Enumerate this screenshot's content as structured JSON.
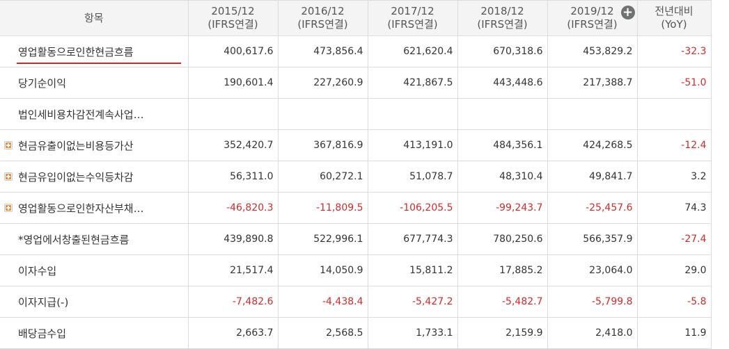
{
  "table": {
    "header": {
      "item": "항목",
      "periods": [
        {
          "year": "2015/12",
          "basis": "(IFRS연결)"
        },
        {
          "year": "2016/12",
          "basis": "(IFRS연결)"
        },
        {
          "year": "2017/12",
          "basis": "(IFRS연결)"
        },
        {
          "year": "2018/12",
          "basis": "(IFRS연결)"
        },
        {
          "year": "2019/12",
          "basis": "(IFRS연결)"
        }
      ],
      "yoy": {
        "line1": "전년대비",
        "line2": "(YoY)"
      },
      "add_column_icon": "plus-circle-icon"
    },
    "rows": [
      {
        "label": "영업활동으로인한현금흐름",
        "expandable": false,
        "highlighted": true,
        "values": [
          "400,617.6",
          "473,856.4",
          "621,620.4",
          "670,318.6",
          "453,829.2"
        ],
        "yoy": "-32.3"
      },
      {
        "label": "당기순이익",
        "expandable": false,
        "values": [
          "190,601.4",
          "227,260.9",
          "421,867.5",
          "443,448.6",
          "217,388.7"
        ],
        "yoy": "-51.0"
      },
      {
        "label": "법인세비용차감전계속사업…",
        "expandable": false,
        "values": [
          "",
          "",
          "",
          "",
          ""
        ],
        "yoy": ""
      },
      {
        "label": "현금유출이없는비용등가산",
        "expandable": true,
        "values": [
          "352,420.7",
          "367,816.9",
          "413,191.0",
          "484,356.1",
          "424,268.5"
        ],
        "yoy": "-12.4"
      },
      {
        "label": "현금유입이없는수익등차감",
        "expandable": true,
        "values": [
          "56,311.0",
          "60,272.1",
          "51,078.7",
          "48,310.4",
          "49,841.7"
        ],
        "yoy": "3.2"
      },
      {
        "label": "영업활동으로인한자산부채…",
        "expandable": true,
        "values": [
          "-46,820.3",
          "-11,809.5",
          "-106,205.5",
          "-99,243.7",
          "-25,457.6"
        ],
        "yoy": "74.3"
      },
      {
        "label": "*영업에서창출된현금흐름",
        "expandable": false,
        "values": [
          "439,890.8",
          "522,996.1",
          "677,774.3",
          "780,250.6",
          "566,357.9"
        ],
        "yoy": "-27.4"
      },
      {
        "label": "이자수입",
        "expandable": false,
        "values": [
          "21,517.4",
          "14,050.9",
          "15,811.2",
          "17,885.2",
          "23,064.0"
        ],
        "yoy": "29.0"
      },
      {
        "label": "이자지급(-)",
        "expandable": false,
        "values": [
          "-7,482.6",
          "-4,438.4",
          "-5,427.2",
          "-5,482.7",
          "-5,799.8"
        ],
        "yoy": "-5.8"
      },
      {
        "label": "배당금수입",
        "expandable": false,
        "values": [
          "2,663.7",
          "2,568.5",
          "1,733.1",
          "2,159.9",
          "2,418.0"
        ],
        "yoy": "11.9"
      }
    ]
  },
  "colors": {
    "negative": "#d42a2a",
    "header_bg": "#f4f4f4",
    "border": "#dcdcdc",
    "expander": "#f08a3a",
    "highlight_underline": "#e02020"
  }
}
